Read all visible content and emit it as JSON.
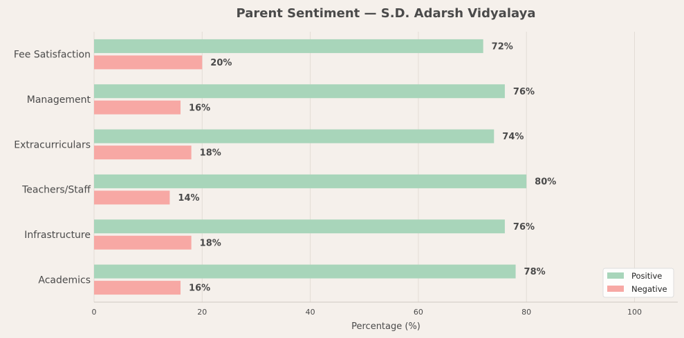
{
  "chart_data": {
    "type": "bar",
    "orientation": "horizontal",
    "title": "Parent Sentiment — S.D. Adarsh Vidyalaya",
    "xlabel": "Percentage (%)",
    "ylabel": "",
    "xlim": [
      0,
      108
    ],
    "xticks": [
      0,
      20,
      40,
      60,
      80,
      100
    ],
    "categories": [
      "Fee Satisfaction",
      "Management",
      "Extracurriculars",
      "Teachers/Staff",
      "Infrastructure",
      "Academics"
    ],
    "series": [
      {
        "name": "Positive",
        "color": "#a8d5ba",
        "values": [
          72,
          76,
          74,
          80,
          76,
          78
        ],
        "labels": [
          "72%",
          "76%",
          "74%",
          "80%",
          "76%",
          "78%"
        ]
      },
      {
        "name": "Negative",
        "color": "#f7a8a4",
        "values": [
          20,
          16,
          18,
          14,
          18,
          16
        ],
        "labels": [
          "20%",
          "16%",
          "18%",
          "14%",
          "18%",
          "16%"
        ]
      }
    ],
    "grid": true,
    "legend_position": "bottom-right"
  }
}
